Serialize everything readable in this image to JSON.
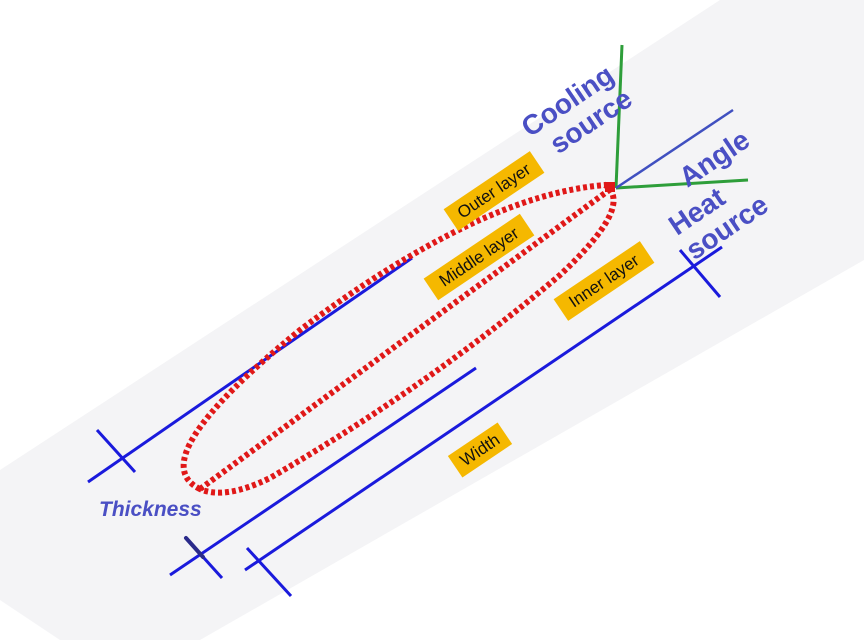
{
  "labels": {
    "cooling_source": [
      "Cooling",
      "source"
    ],
    "angle": "Angle",
    "heat_source": [
      "Heat",
      "source"
    ],
    "thickness": "Thickness",
    "outer_layer": "Outer layer",
    "middle_layer": "Middle layer",
    "inner_layer": "Inner layer",
    "width": "Width"
  },
  "colors": {
    "label_text": "#4a4fc4",
    "dimension_line": "#1a1adc",
    "source_line": "#2e9e3a",
    "angle_line": "#4050c0",
    "dotted_outline": "#e01818",
    "tag_fill": "#f5b800",
    "background_band": "#f4f4f6"
  }
}
